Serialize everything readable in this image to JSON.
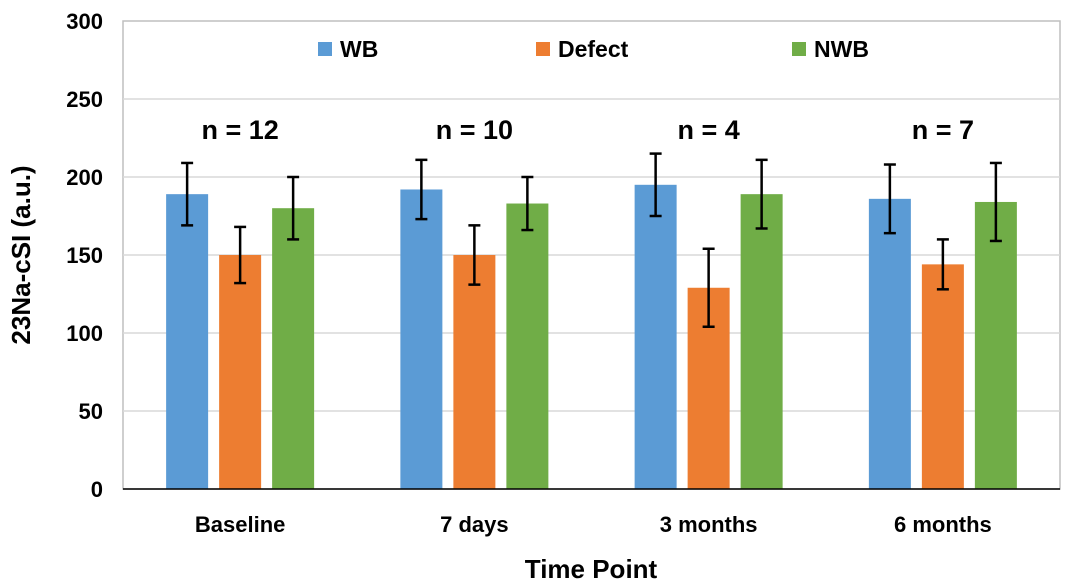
{
  "chart_data": {
    "type": "bar",
    "title": "",
    "xlabel": "Time Point",
    "ylabel": "23Na-cSI (a.u.)",
    "ylim": [
      0,
      300
    ],
    "yticks": [
      0,
      50,
      100,
      150,
      200,
      250,
      300
    ],
    "ytick_labels": [
      "0",
      "50",
      "100",
      "150",
      "200",
      "250",
      "300"
    ],
    "grid": true,
    "legend_position": "top-center",
    "categories": [
      "Baseline",
      "7 days",
      "3 months",
      "6 months"
    ],
    "series": [
      {
        "name": "WB",
        "color": "#5B9BD5",
        "values": [
          189,
          192,
          195,
          186
        ],
        "errors": [
          20,
          19,
          20,
          22
        ]
      },
      {
        "name": "Defect",
        "color": "#ED7D31",
        "values": [
          150,
          150,
          129,
          144
        ],
        "errors": [
          18,
          19,
          25,
          16
        ]
      },
      {
        "name": "NWB",
        "color": "#70AD47",
        "values": [
          180,
          183,
          189,
          184
        ],
        "errors": [
          20,
          17,
          22,
          25
        ]
      }
    ],
    "annotations": [
      "n = 12",
      "n = 10",
      "n = 4",
      "n = 7"
    ]
  }
}
